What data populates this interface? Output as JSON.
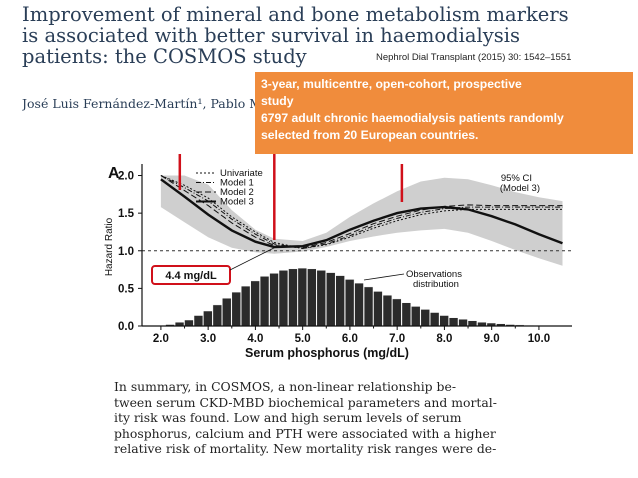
{
  "title_lines": [
    "Improvement of mineral and bone metabolism markers",
    "is associated with better survival in haemodialysis",
    "patients: the COSMOS study"
  ],
  "journal": "Nephrol Dial Transplant (2015) 30: 1542–1551",
  "authors": "José Luis Fernández-Martín¹, Pablo M",
  "callout_lines": [
    "3-year, multicentre, open-cohort, prospective",
    "study",
    "6797 adult chronic haemodialysis patients randomly",
    "selected from 20 European countries."
  ],
  "figure": {
    "panel_label": "A",
    "ylabel": "Hazard Ratio",
    "xlabel": "Serum phosphorus (mg/dL)",
    "ci_label": "95% CI",
    "ci_sublabel": "(Model 3)",
    "legend": [
      "Univariate",
      "Model 1",
      "Model 2",
      "Model 3"
    ],
    "obs_label_line1": "Observations",
    "obs_label_line2": "distribution",
    "min_label": "4.4 mg/dL",
    "colors": {
      "highlight": "#d0101a",
      "ci_band": "#cfcfcf",
      "bars": "#2b2b2b"
    }
  },
  "chart_data": {
    "type": "line",
    "x": [
      2.0,
      2.5,
      3.0,
      3.5,
      4.0,
      4.4,
      5.0,
      5.5,
      6.0,
      6.5,
      7.0,
      7.5,
      8.0,
      8.5,
      9.0,
      9.5,
      10.0,
      10.5
    ],
    "series": [
      {
        "name": "Model 3",
        "values": [
          1.95,
          1.72,
          1.48,
          1.27,
          1.12,
          1.05,
          1.06,
          1.14,
          1.28,
          1.4,
          1.5,
          1.56,
          1.58,
          1.55,
          1.46,
          1.35,
          1.22,
          1.1
        ]
      },
      {
        "name": "Univariate",
        "values": [
          2.0,
          1.87,
          1.7,
          1.45,
          1.25,
          1.11,
          1.03,
          1.08,
          1.18,
          1.3,
          1.4,
          1.48,
          1.53,
          1.55,
          1.55,
          1.55,
          1.55,
          1.55
        ]
      },
      {
        "name": "Model 1",
        "values": [
          2.0,
          1.84,
          1.66,
          1.42,
          1.22,
          1.09,
          1.03,
          1.09,
          1.2,
          1.33,
          1.43,
          1.51,
          1.56,
          1.58,
          1.58,
          1.58,
          1.58,
          1.58
        ]
      },
      {
        "name": "Model 2",
        "values": [
          2.0,
          1.8,
          1.6,
          1.37,
          1.18,
          1.07,
          1.04,
          1.11,
          1.23,
          1.36,
          1.46,
          1.54,
          1.59,
          1.61,
          1.6,
          1.6,
          1.6,
          1.6
        ]
      }
    ],
    "ci_upper": [
      2.0,
      2.0,
      1.88,
      1.54,
      1.28,
      1.16,
      1.13,
      1.24,
      1.45,
      1.63,
      1.79,
      1.92,
      1.97,
      1.95,
      1.87,
      1.78,
      1.71,
      1.66
    ],
    "ci_lower": [
      1.58,
      1.38,
      1.18,
      1.04,
      0.98,
      0.96,
      0.99,
      1.05,
      1.13,
      1.19,
      1.24,
      1.27,
      1.29,
      1.24,
      1.13,
      1.01,
      0.9,
      0.8
    ],
    "reference_line": 1.0,
    "distribution": {
      "bin_centers": [
        2.2,
        2.4,
        2.6,
        2.8,
        3.0,
        3.2,
        3.4,
        3.6,
        3.8,
        4.0,
        4.2,
        4.4,
        4.6,
        4.8,
        5.0,
        5.2,
        5.4,
        5.6,
        5.8,
        6.0,
        6.2,
        6.4,
        6.6,
        6.8,
        7.0,
        7.2,
        7.4,
        7.6,
        7.8,
        8.0,
        8.2,
        8.4,
        8.6,
        8.8,
        9.0,
        9.2,
        9.4,
        9.6,
        9.8,
        10.0
      ],
      "heights": [
        0.02,
        0.05,
        0.08,
        0.14,
        0.2,
        0.28,
        0.37,
        0.45,
        0.53,
        0.6,
        0.66,
        0.7,
        0.74,
        0.76,
        0.77,
        0.76,
        0.74,
        0.71,
        0.67,
        0.62,
        0.57,
        0.52,
        0.46,
        0.41,
        0.36,
        0.31,
        0.26,
        0.22,
        0.18,
        0.14,
        0.11,
        0.09,
        0.07,
        0.05,
        0.04,
        0.03,
        0.02,
        0.015,
        0.01,
        0.005
      ]
    },
    "minimum_x": 4.4,
    "arrows_x": [
      2.4,
      4.4,
      7.1
    ],
    "xlabel": "Serum phosphorus (mg/dL)",
    "ylabel": "Hazard Ratio",
    "x_ticks": [
      "2.0",
      "3.0",
      "4.0",
      "5.0",
      "6.0",
      "7.0",
      "8.0",
      "9.0",
      "10.0"
    ],
    "y_ticks": [
      "0.0",
      "0.5",
      "1.0",
      "1.5",
      "2.0"
    ],
    "xlim": [
      1.6,
      10.7
    ],
    "ylim": [
      0.0,
      2.1
    ]
  },
  "summary_lines": [
    "In summary, in COSMOS, a non-linear relationship be-",
    "tween serum CKD-MBD biochemical parameters and mortal-",
    "ity risk was found. Low and high serum levels of serum",
    "phosphorus, calcium and PTH were associated with a higher",
    "relative risk of mortality. New mortality risk ranges were de-"
  ]
}
